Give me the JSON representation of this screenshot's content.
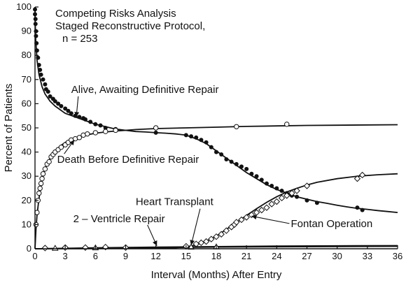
{
  "chart_data": {
    "type": "scatter",
    "title_lines": [
      "Competing Risks Analysis",
      "Staged Reconstructive Protocol,",
      "n = 253"
    ],
    "xlabel": "Interval (Months) After Entry",
    "ylabel": "Percent of Patients",
    "xlim": [
      0,
      36
    ],
    "ylim": [
      0,
      100
    ],
    "x_ticks": [
      0,
      3,
      6,
      9,
      12,
      15,
      18,
      21,
      24,
      27,
      30,
      33,
      36
    ],
    "y_ticks": [
      0,
      10,
      20,
      30,
      40,
      50,
      60,
      70,
      80,
      90,
      100
    ],
    "grid": false,
    "series": [
      {
        "name": "Alive, Awaiting Definitive Repair",
        "marker": "filled-circle",
        "color": "#111111",
        "curve": [
          [
            0,
            100
          ],
          [
            0.05,
            88
          ],
          [
            0.2,
            78
          ],
          [
            0.4,
            72
          ],
          [
            0.7,
            67
          ],
          [
            1,
            64
          ],
          [
            1.5,
            61
          ],
          [
            2,
            59
          ],
          [
            3,
            56
          ],
          [
            4,
            54.5
          ],
          [
            5,
            53
          ],
          [
            6,
            51.5
          ],
          [
            7,
            50.5
          ],
          [
            8,
            49.5
          ],
          [
            9,
            49
          ],
          [
            10,
            48.5
          ],
          [
            11,
            48.3
          ],
          [
            12,
            48
          ],
          [
            13,
            47.8
          ],
          [
            14,
            47.5
          ],
          [
            15,
            47
          ],
          [
            16,
            45.5
          ],
          [
            17,
            43.5
          ],
          [
            18,
            40.5
          ],
          [
            19,
            37.5
          ],
          [
            20,
            34.5
          ],
          [
            21,
            31.5
          ],
          [
            22,
            29
          ],
          [
            23,
            26.5
          ],
          [
            24,
            24.5
          ],
          [
            25,
            23
          ],
          [
            26,
            21.5
          ],
          [
            27,
            20.5
          ],
          [
            28,
            19.5
          ],
          [
            29,
            18.8
          ],
          [
            30,
            18
          ],
          [
            31,
            17.3
          ],
          [
            32,
            16.7
          ],
          [
            33,
            16.3
          ],
          [
            34,
            15.8
          ],
          [
            35,
            15.4
          ],
          [
            36,
            15
          ]
        ],
        "points": [
          [
            0,
            99
          ],
          [
            0,
            97
          ],
          [
            0.05,
            95
          ],
          [
            0.05,
            93
          ],
          [
            0.1,
            90
          ],
          [
            0.1,
            88
          ],
          [
            0.15,
            85
          ],
          [
            0.2,
            82
          ],
          [
            0.3,
            79
          ],
          [
            0.4,
            76
          ],
          [
            0.5,
            74
          ],
          [
            0.6,
            72
          ],
          [
            0.8,
            70
          ],
          [
            1,
            68
          ],
          [
            1.1,
            66
          ],
          [
            1.3,
            65
          ],
          [
            1.5,
            63
          ],
          [
            1.8,
            62
          ],
          [
            2,
            61
          ],
          [
            2.3,
            60
          ],
          [
            2.6,
            59
          ],
          [
            3,
            58
          ],
          [
            3.3,
            57
          ],
          [
            3.6,
            56
          ],
          [
            4,
            55
          ],
          [
            4.4,
            54.5
          ],
          [
            4.8,
            54
          ],
          [
            5,
            53.5
          ],
          [
            5.5,
            52.5
          ],
          [
            6,
            51.5
          ],
          [
            6.5,
            51
          ],
          [
            7,
            50
          ],
          [
            8,
            49.5
          ],
          [
            12,
            48
          ],
          [
            15,
            47
          ],
          [
            15.5,
            46.5
          ],
          [
            16,
            46
          ],
          [
            16.5,
            45
          ],
          [
            17,
            44
          ],
          [
            17.5,
            42
          ],
          [
            18,
            40
          ],
          [
            18.5,
            39
          ],
          [
            19,
            37
          ],
          [
            19.5,
            36
          ],
          [
            20,
            35
          ],
          [
            20.5,
            34
          ],
          [
            21,
            33
          ],
          [
            21.5,
            31
          ],
          [
            22,
            30
          ],
          [
            22.5,
            28.5
          ],
          [
            23,
            27
          ],
          [
            23.5,
            26
          ],
          [
            24,
            25
          ],
          [
            24.5,
            24
          ],
          [
            25,
            23
          ],
          [
            25.5,
            22
          ],
          [
            26,
            21.5
          ],
          [
            27,
            20
          ],
          [
            28,
            19
          ],
          [
            32,
            17
          ],
          [
            32.5,
            16
          ]
        ]
      },
      {
        "name": "Death Before Definitive Repair",
        "marker": "open-circle",
        "color": "#111111",
        "curve": [
          [
            0,
            0
          ],
          [
            0.1,
            8
          ],
          [
            0.2,
            14
          ],
          [
            0.4,
            21
          ],
          [
            0.6,
            26
          ],
          [
            0.8,
            30
          ],
          [
            1,
            33
          ],
          [
            1.5,
            37.5
          ],
          [
            2,
            40.5
          ],
          [
            2.5,
            42.5
          ],
          [
            3,
            44
          ],
          [
            4,
            45.8
          ],
          [
            5,
            47
          ],
          [
            6,
            47.8
          ],
          [
            7,
            48.3
          ],
          [
            8,
            48.7
          ],
          [
            9,
            49
          ],
          [
            10,
            49.3
          ],
          [
            12,
            49.7
          ],
          [
            15,
            50
          ],
          [
            18,
            50.3
          ],
          [
            21,
            50.6
          ],
          [
            24,
            50.8
          ],
          [
            27,
            51
          ],
          [
            30,
            51.1
          ],
          [
            33,
            51.2
          ],
          [
            36,
            51.3
          ]
        ],
        "points": [
          [
            0.1,
            10
          ],
          [
            0.2,
            15
          ],
          [
            0.3,
            20
          ],
          [
            0.4,
            23
          ],
          [
            0.5,
            25
          ],
          [
            0.6,
            27
          ],
          [
            0.7,
            29
          ],
          [
            0.8,
            31
          ],
          [
            1,
            33
          ],
          [
            1.2,
            35
          ],
          [
            1.4,
            36
          ],
          [
            1.6,
            38
          ],
          [
            1.8,
            39
          ],
          [
            2,
            40
          ],
          [
            2.3,
            41
          ],
          [
            2.6,
            42
          ],
          [
            3,
            43
          ],
          [
            3.3,
            44
          ],
          [
            3.6,
            45
          ],
          [
            4,
            45.5
          ],
          [
            4.4,
            46
          ],
          [
            4.8,
            47
          ],
          [
            5.2,
            47.5
          ],
          [
            6,
            48
          ],
          [
            7,
            48.5
          ],
          [
            8,
            49
          ],
          [
            12,
            50
          ],
          [
            20,
            50.5
          ],
          [
            25,
            51.5
          ]
        ]
      },
      {
        "name": "Fontan Operation",
        "marker": "open-diamond",
        "color": "#111111",
        "curve": [
          [
            0,
            0
          ],
          [
            12,
            0.2
          ],
          [
            14,
            0.4
          ],
          [
            15,
            0.8
          ],
          [
            16,
            1.6
          ],
          [
            17,
            3
          ],
          [
            18,
            5.2
          ],
          [
            19,
            8
          ],
          [
            20,
            10.8
          ],
          [
            21,
            13.8
          ],
          [
            22,
            16.6
          ],
          [
            23,
            19.2
          ],
          [
            24,
            21.5
          ],
          [
            25,
            23.5
          ],
          [
            26,
            25
          ],
          [
            27,
            26.4
          ],
          [
            28,
            27.5
          ],
          [
            30,
            29
          ],
          [
            32,
            30
          ],
          [
            34,
            30.6
          ],
          [
            36,
            31
          ]
        ],
        "points": [
          [
            1,
            0.3
          ],
          [
            3,
            0.5
          ],
          [
            5,
            0.5
          ],
          [
            7,
            0.7
          ],
          [
            9,
            0.5
          ],
          [
            15,
            1
          ],
          [
            16,
            2
          ],
          [
            16.5,
            2.5
          ],
          [
            17,
            3
          ],
          [
            17.5,
            4
          ],
          [
            18,
            5
          ],
          [
            18.5,
            6
          ],
          [
            19,
            7.5
          ],
          [
            19.5,
            9
          ],
          [
            19.8,
            10
          ],
          [
            20,
            11
          ],
          [
            20.5,
            12
          ],
          [
            21,
            13
          ],
          [
            21.5,
            14
          ],
          [
            22,
            15
          ],
          [
            22.5,
            16
          ],
          [
            23,
            17
          ],
          [
            23.5,
            18.5
          ],
          [
            24,
            19.5
          ],
          [
            24.5,
            21
          ],
          [
            25,
            22
          ],
          [
            25.5,
            23
          ],
          [
            26,
            24
          ],
          [
            27,
            26
          ],
          [
            32,
            29
          ],
          [
            32.5,
            30.5
          ]
        ]
      },
      {
        "name": "Heart Transplant",
        "marker": "open-triangle",
        "color": "#111111",
        "curve": [
          [
            0,
            0
          ],
          [
            6,
            0.4
          ],
          [
            12,
            0.7
          ],
          [
            18,
            0.9
          ],
          [
            24,
            1.1
          ],
          [
            30,
            1.2
          ],
          [
            36,
            1.3
          ]
        ],
        "points": [
          [
            2,
            0.2
          ],
          [
            6,
            0.4
          ],
          [
            15.5,
            0.7
          ],
          [
            18,
            0.8
          ]
        ]
      },
      {
        "name": "2 – Ventricle Repair",
        "marker": "filled-circle",
        "color": "#111111",
        "curve": [
          [
            0,
            0
          ],
          [
            6,
            0.3
          ],
          [
            12,
            0.5
          ],
          [
            18,
            0.7
          ],
          [
            24,
            0.8
          ],
          [
            30,
            0.9
          ],
          [
            36,
            1
          ]
        ],
        "points": []
      }
    ],
    "annotations": [
      {
        "text": "Alive, Awaiting Definitive Repair",
        "series": "Alive, Awaiting Definitive Repair",
        "label_x": 3.6,
        "label_y": 64.5,
        "arrow_to": [
          4.1,
          54.5
        ]
      },
      {
        "text": "Death Before Definitive Repair",
        "series": "Death Before Definitive Repair",
        "label_x": 2.2,
        "label_y": 35.5,
        "arrow_to": [
          3.9,
          45
        ]
      },
      {
        "text": "Heart Transplant",
        "series": "Heart Transplant",
        "label_x": 10,
        "label_y": 18,
        "arrow_to": [
          15.5,
          1.5
        ]
      },
      {
        "text": "2 – Ventricle Repair",
        "series": "2 – Ventricle Repair",
        "label_x": 3.8,
        "label_y": 11,
        "arrow_to": [
          12.1,
          1.2
        ]
      },
      {
        "text": "Fontan Operation",
        "series": "Fontan Operation",
        "label_x": 25.4,
        "label_y": 9,
        "arrow_to": [
          21.5,
          13.5
        ]
      }
    ]
  }
}
